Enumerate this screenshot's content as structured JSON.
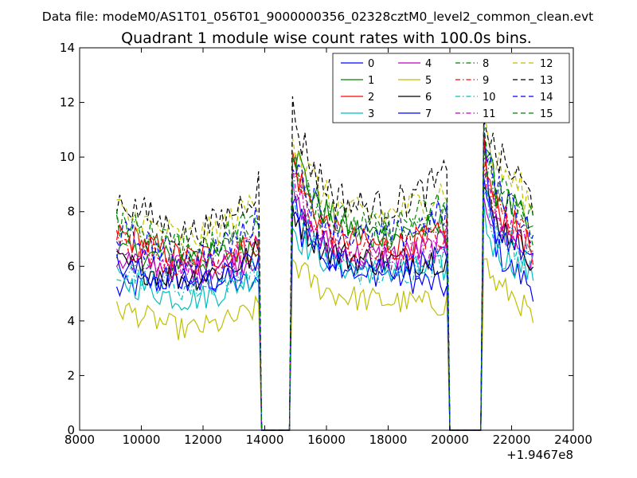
{
  "header": {
    "suptitle": "Data file: modeM0/AS1T01_056T01_9000000356_02328cztM0_level2_common_clean.evt",
    "title": "Quadrant 1 module wise count rates with 100.0s bins."
  },
  "chart_data": {
    "type": "line",
    "title": "Quadrant 1 module wise count rates with 100.0s bins.",
    "xlabel": "",
    "ylabel": "",
    "x_offset_label": "+1.9467e8",
    "xlim": [
      8000,
      24000
    ],
    "ylim": [
      0,
      14
    ],
    "xticks": [
      8000,
      10000,
      12000,
      14000,
      16000,
      18000,
      20000,
      22000,
      24000
    ],
    "yticks": [
      0,
      2,
      4,
      6,
      8,
      10,
      12,
      14
    ],
    "grid": false,
    "legend_position": "top-right",
    "segments": [
      [
        9200,
        13800
      ],
      [
        14900,
        19900
      ],
      [
        21100,
        22700
      ]
    ],
    "x_description": "100 s bins; rates drop to 0 between 13800-14800 and 20000-21000",
    "series": [
      {
        "name": "0",
        "color": "#0000ff",
        "dash": "solid",
        "levels": [
          5.1,
          5.6,
          5.2,
          8.8,
          5.7,
          5.2,
          10.4,
          5.8,
          5.2
        ]
      },
      {
        "name": "1",
        "color": "#008000",
        "dash": "solid",
        "levels": [
          6.5,
          6.2,
          6.9,
          10.6,
          7.0,
          7.5,
          11.0,
          8.2,
          7.0
        ]
      },
      {
        "name": "2",
        "color": "#ff0000",
        "dash": "solid",
        "levels": [
          7.2,
          6.3,
          6.8,
          10.0,
          6.6,
          7.1,
          10.4,
          7.6,
          6.4
        ]
      },
      {
        "name": "3",
        "color": "#00bfbf",
        "dash": "solid",
        "levels": [
          5.5,
          4.8,
          5.8,
          7.5,
          5.8,
          5.9,
          8.0,
          6.2,
          5.6
        ]
      },
      {
        "name": "4",
        "color": "#bf00bf",
        "dash": "solid",
        "levels": [
          6.3,
          5.9,
          6.4,
          8.5,
          6.2,
          6.8,
          9.0,
          7.0,
          6.0
        ]
      },
      {
        "name": "5",
        "color": "#bfbf00",
        "dash": "solid",
        "levels": [
          4.5,
          3.7,
          4.5,
          6.3,
          4.7,
          4.6,
          6.5,
          5.0,
          4.0
        ]
      },
      {
        "name": "6",
        "color": "#000000",
        "dash": "solid",
        "levels": [
          6.1,
          5.6,
          6.5,
          8.2,
          6.1,
          6.3,
          9.0,
          7.2,
          6.2
        ]
      },
      {
        "name": "7",
        "color": "#0000ff",
        "dash": "solid",
        "levels": [
          6.0,
          5.4,
          6.2,
          7.9,
          5.9,
          6.2,
          8.7,
          7.0,
          6.0
        ]
      },
      {
        "name": "8",
        "color": "#008000",
        "dash": "dashdot",
        "levels": [
          7.4,
          6.6,
          7.3,
          10.2,
          6.9,
          7.8,
          10.7,
          8.2,
          7.1
        ]
      },
      {
        "name": "9",
        "color": "#ff0000",
        "dash": "dashdot",
        "levels": [
          6.9,
          6.1,
          6.7,
          9.6,
          6.3,
          7.2,
          10.2,
          7.6,
          6.5
        ]
      },
      {
        "name": "10",
        "color": "#00bfbf",
        "dash": "dashdot",
        "levels": [
          6.0,
          5.2,
          6.0,
          8.7,
          5.6,
          6.3,
          9.2,
          6.9,
          6.0
        ]
      },
      {
        "name": "11",
        "color": "#bf00bf",
        "dash": "dashdot",
        "levels": [
          6.6,
          5.9,
          6.6,
          9.4,
          6.1,
          6.9,
          9.8,
          7.4,
          6.3
        ]
      },
      {
        "name": "12",
        "color": "#bfbf00",
        "dash": "dashed",
        "levels": [
          8.0,
          7.0,
          8.6,
          11.0,
          7.6,
          8.9,
          11.6,
          9.2,
          8.0
        ]
      },
      {
        "name": "13",
        "color": "#000000",
        "dash": "dashed",
        "levels": [
          8.5,
          7.2,
          9.0,
          11.8,
          7.9,
          9.3,
          12.0,
          9.5,
          8.3
        ]
      },
      {
        "name": "14",
        "color": "#0000ff",
        "dash": "dashed",
        "levels": [
          7.2,
          6.3,
          7.7,
          10.3,
          6.8,
          8.0,
          10.9,
          8.3,
          7.2
        ]
      },
      {
        "name": "15",
        "color": "#008000",
        "dash": "dashed",
        "levels": [
          7.6,
          6.7,
          8.0,
          10.4,
          7.2,
          8.4,
          11.0,
          8.6,
          7.6
        ]
      }
    ]
  }
}
